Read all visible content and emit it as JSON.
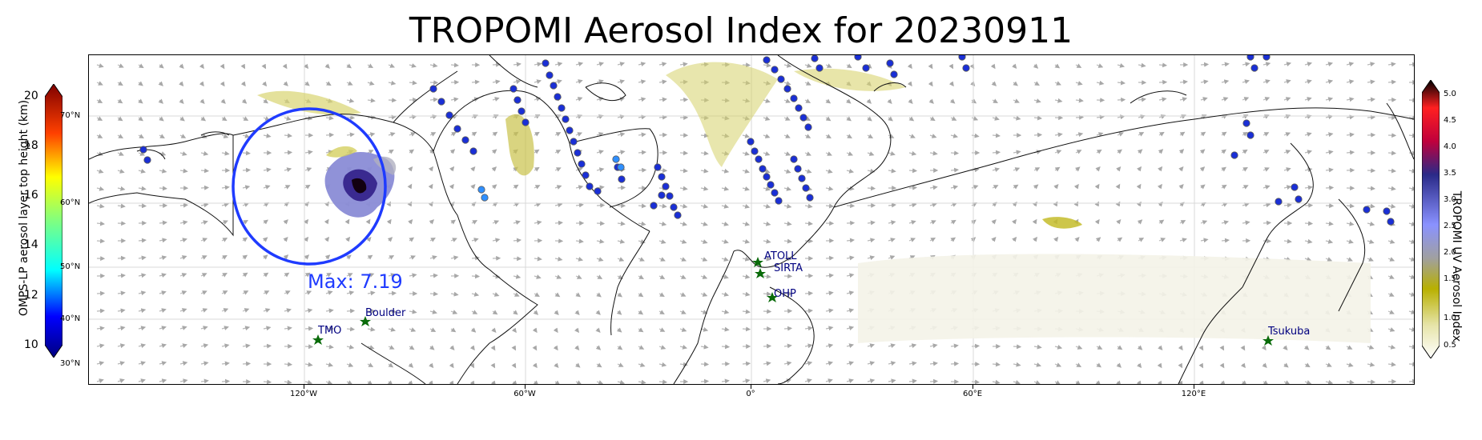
{
  "title": "TROPOMI Aerosol Index for 20230911",
  "longitude_ticks": [
    "120°W",
    "60°W",
    "0°",
    "60°E",
    "120°E"
  ],
  "latitude_labels": [
    "70°N",
    "60°N",
    "50°N",
    "40°N",
    "30°N"
  ],
  "left_colorbar": {
    "title": "OMPS-LP aerosol layer top height (km)",
    "ticks": [
      "20",
      "18",
      "16",
      "14",
      "12",
      "10"
    ],
    "colors": [
      "#00007f",
      "#0000ff",
      "#0080ff",
      "#00ffff",
      "#80ff80",
      "#ffff00",
      "#ff8000",
      "#ff0000",
      "#7f0000"
    ]
  },
  "right_colorbar": {
    "title": "TROPOMI UV Aerosol Index",
    "ticks": [
      "5.0",
      "4.5",
      "4.0",
      "3.5",
      "3.0",
      "2.5",
      "2.0",
      "1.5",
      "1.0",
      "0.5"
    ],
    "colors": [
      "#ffffff",
      "#e8e6b0",
      "#b5b000",
      "#9a9a9a",
      "#7a86ff",
      "#303090",
      "#c0004a",
      "#ff2020",
      "#000000"
    ]
  },
  "annotation": {
    "max_label": "Max: 7.19",
    "circle_color": "#1f3bff"
  },
  "sites": [
    {
      "name": "ATOLL"
    },
    {
      "name": "SIRTA"
    },
    {
      "name": "OHP"
    },
    {
      "name": "Boulder"
    },
    {
      "name": "TMO"
    },
    {
      "name": "Tsukuba"
    }
  ],
  "colors": {
    "site_marker": "#0a6b0a",
    "omps_dot_dark": "#1a2fd6",
    "omps_dot_light": "#2f8fff",
    "coast": "#000000"
  }
}
